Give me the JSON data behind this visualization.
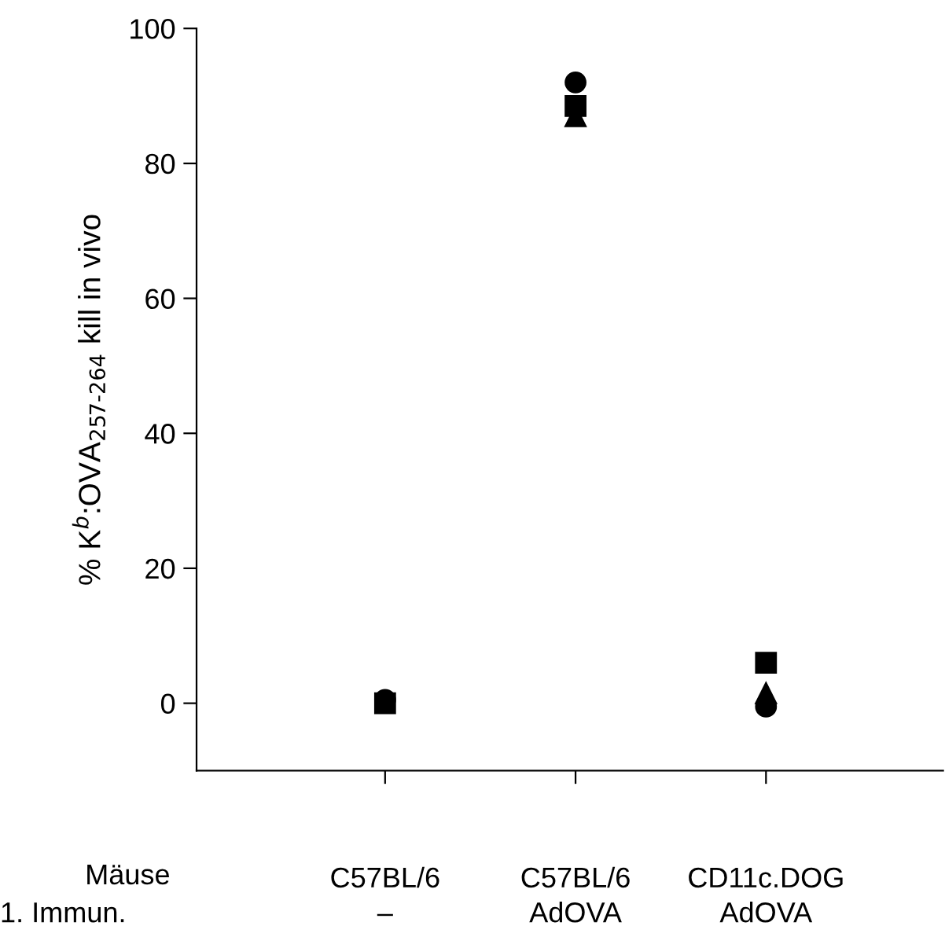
{
  "chart_data": {
    "type": "scatter",
    "ylabel": "% K$^{b}$:OVA$_{257‐264}$ kill in vivo",
    "categories": [
      "C57BL/6",
      "C57BL/6",
      "CD11c.DOG"
    ],
    "series": [
      {
        "color": "#000000",
        "marker": "circle",
        "values": [
          0.5,
          92,
          -0.5
        ]
      },
      {
        "color": "#000000",
        "marker": "square",
        "values": [
          0,
          88.5,
          6
        ]
      },
      {
        "color": "#000000",
        "marker": "triangle",
        "values": [
          null,
          87,
          1.5
        ]
      }
    ],
    "ylim": [
      -10,
      100
    ],
    "yticks": [
      0,
      20,
      40,
      60,
      80,
      100
    ],
    "grid": false,
    "legend": false,
    "annotations": [
      "Mäuse",
      "1. Immun.",
      "–",
      "AdOVA",
      "AdOVA"
    ]
  }
}
